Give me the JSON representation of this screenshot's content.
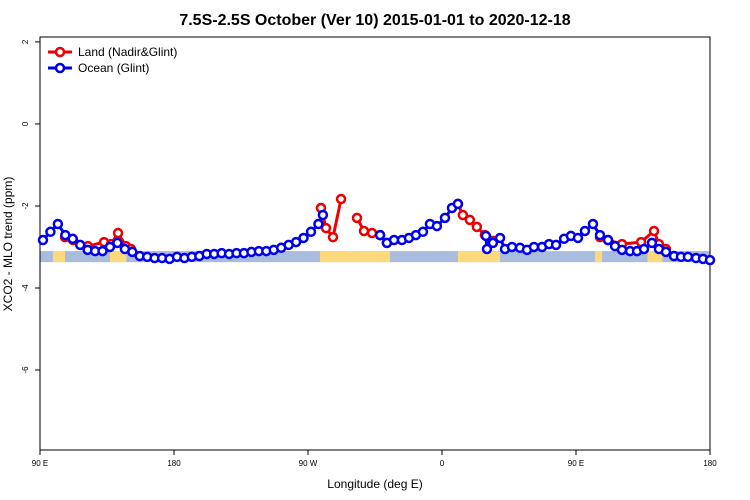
{
  "chart_data": {
    "type": "line",
    "title": "7.5S-2.5S October (Ver 10)   2015-01-01 to 2020-12-18",
    "xlabel": "Longitude (deg E)",
    "ylabel": "XCO2 - MLO trend (ppm)",
    "xlim": [
      90,
      540
    ],
    "ylim": [
      -7.95,
      2.12
    ],
    "xticks": [
      {
        "value": 90,
        "label": "90 E"
      },
      {
        "value": 180,
        "label": "180"
      },
      {
        "value": 270,
        "label": "90 W"
      },
      {
        "value": 360,
        "label": "0"
      },
      {
        "value": 450,
        "label": "90 E"
      },
      {
        "value": 540,
        "label": "180"
      }
    ],
    "yticks": [
      -6,
      -4,
      -2,
      0,
      2
    ],
    "legend": "top-left",
    "band": {
      "ylim": [
        -3.37,
        -3.1
      ],
      "ocean_color": "#a9bcdd",
      "land_color": "#fcd97a",
      "land_spans": [
        [
          98.7,
          106.8
        ],
        [
          137,
          148
        ],
        [
          278,
          325
        ],
        [
          370.7,
          399
        ],
        [
          462.7,
          467.5
        ],
        [
          498,
          508
        ]
      ]
    },
    "series": [
      {
        "name": "Land (Nadir&Glint)",
        "color": "#ee0000",
        "x": [
          106.8,
          112.2,
          122.2,
          133.0,
          137.7,
          142.4,
          147.8,
          151.1,
          null,
          278.7,
          282.1,
          286.8,
          292.2,
          null,
          302.9,
          307.6,
          313.0,
          318.4,
          323.0,
          null,
          370.7,
          374.0,
          378.7,
          383.4,
          388.8,
          394.2,
          null,
          466.1,
          471.5,
          480.9,
          493.7,
          502.4,
          505.7,
          510.4
        ],
        "values": [
          -2.76,
          -2.83,
          -2.98,
          -2.88,
          -2.93,
          -2.66,
          -2.98,
          -3.05,
          null,
          -2.05,
          -2.54,
          -2.76,
          -1.83,
          null,
          -2.29,
          -2.61,
          -2.66,
          -2.71,
          -2.9,
          null,
          -1.95,
          -2.22,
          -2.34,
          -2.51,
          -2.71,
          -2.85,
          null,
          -2.76,
          -2.83,
          -2.93,
          -2.88,
          -2.61,
          -2.93,
          -3.05
        ]
      },
      {
        "name": "Ocean (Glint)",
        "color": "#0000ee",
        "x": [
          92,
          97,
          102,
          107,
          112,
          117,
          122,
          127,
          132,
          137,
          142,
          147,
          152,
          157,
          162,
          167,
          172,
          177,
          182,
          187,
          192,
          197,
          202,
          207,
          212,
          217,
          222,
          227,
          232,
          237,
          242,
          247,
          252,
          257,
          262,
          267,
          272,
          277,
          280,
          null,
          318.4,
          323.0,
          327.8,
          333.1,
          337.8,
          342.5,
          347.2,
          351.9,
          356.6,
          362.0,
          366.7,
          370.7,
          null,
          389.5,
          390.2,
          394.2,
          399.0,
          402.3,
          407.0,
          412.4,
          417.1,
          421.8,
          427.2,
          431.9,
          436.6,
          442.0,
          446.6,
          451.3,
          456.0,
          461.4,
          466.1,
          471.5,
          476.2,
          480.9,
          486.3,
          491.0,
          495.7,
          501.0,
          505.7,
          510.4,
          515.8,
          520.5,
          525.2,
          530.6,
          535.3,
          540.0
        ],
        "values": [
          -2.83,
          -2.63,
          -2.44,
          -2.71,
          -2.8,
          -2.95,
          -3.07,
          -3.1,
          -3.1,
          -3.0,
          -2.9,
          -3.05,
          -3.12,
          -3.22,
          -3.24,
          -3.27,
          -3.27,
          -3.29,
          -3.24,
          -3.27,
          -3.24,
          -3.22,
          -3.17,
          -3.17,
          -3.15,
          -3.17,
          -3.15,
          -3.15,
          -3.12,
          -3.1,
          -3.1,
          -3.07,
          -3.02,
          -2.95,
          -2.88,
          -2.78,
          -2.63,
          -2.44,
          -2.22,
          null,
          -2.71,
          -2.9,
          -2.83,
          -2.83,
          -2.78,
          -2.71,
          -2.63,
          -2.44,
          -2.49,
          -2.29,
          -2.05,
          -1.95,
          null,
          -2.73,
          -3.05,
          -2.9,
          -2.78,
          -3.05,
          -3.0,
          -3.02,
          -3.07,
          -3.0,
          -3.0,
          -2.93,
          -2.95,
          -2.8,
          -2.73,
          -2.78,
          -2.61,
          -2.44,
          -2.71,
          -2.83,
          -2.98,
          -3.07,
          -3.1,
          -3.1,
          -3.05,
          -2.9,
          -3.05,
          -3.12,
          -3.22,
          -3.24,
          -3.24,
          -3.27,
          -3.29,
          -3.32
        ]
      }
    ]
  }
}
